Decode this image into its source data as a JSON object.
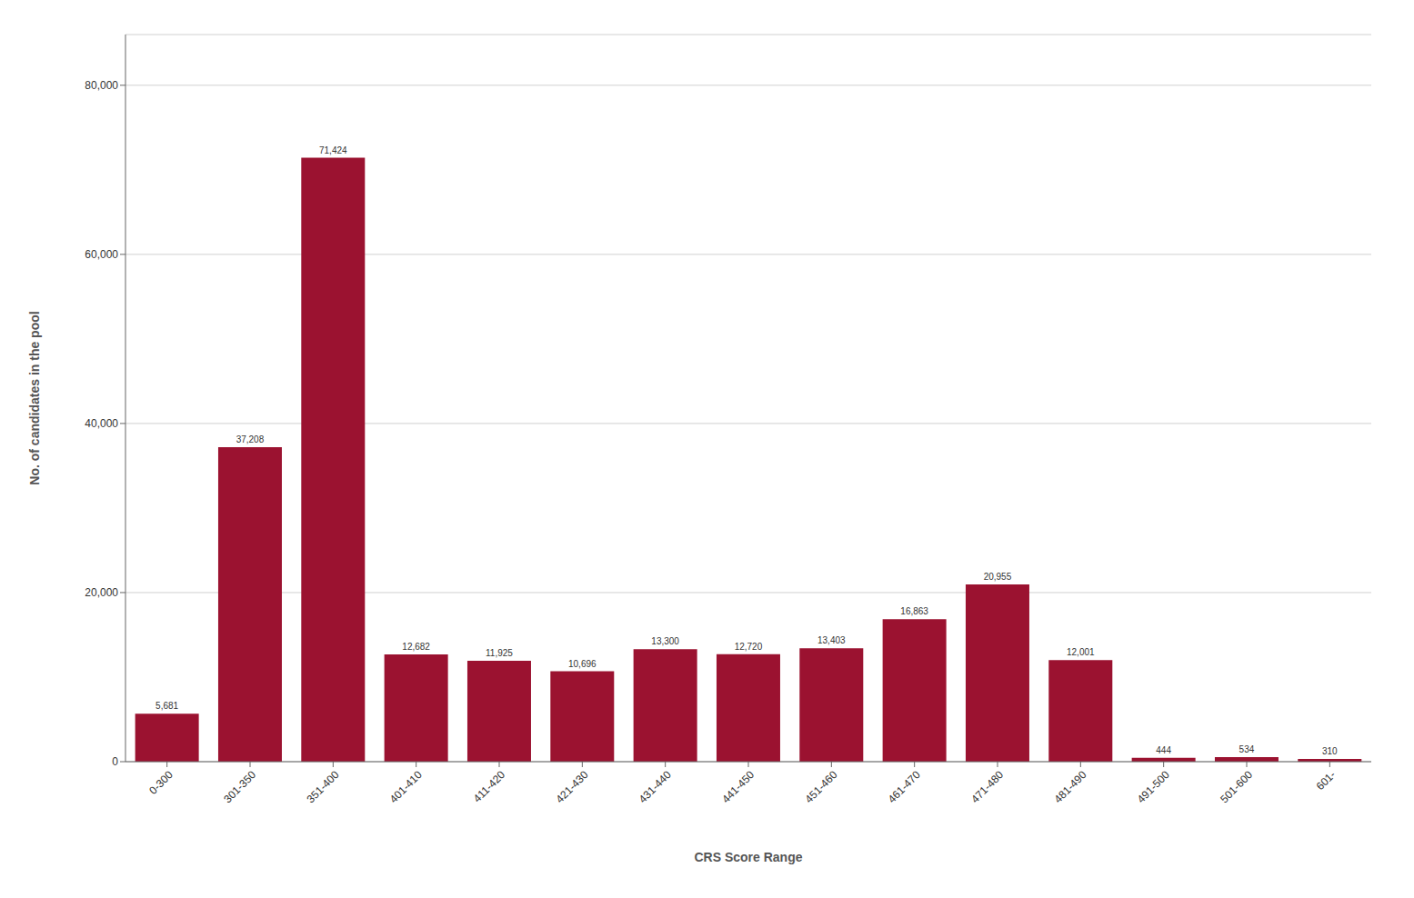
{
  "chart_data": {
    "type": "bar",
    "categories": [
      "0-300",
      "301-350",
      "351-400",
      "401-410",
      "411-420",
      "421-430",
      "431-440",
      "441-450",
      "451-460",
      "461-470",
      "471-480",
      "481-490",
      "491-500",
      "501-600",
      "601-"
    ],
    "values": [
      5681,
      37208,
      71424,
      12682,
      11925,
      10696,
      13300,
      12720,
      13403,
      16863,
      20955,
      12001,
      444,
      534,
      310
    ],
    "value_labels": [
      "5,681",
      "37,208",
      "71,424",
      "12,682",
      "11,925",
      "10,696",
      "13,300",
      "12,720",
      "13,403",
      "16,863",
      "20,955",
      "12,001",
      "444",
      "534",
      "310"
    ],
    "data_labels": true,
    "color": "#9B1230",
    "xlabel": "CRS Score Range",
    "ylabel": "No. of candidates in the pool",
    "ylim": [
      0,
      86000
    ],
    "yticks": [
      0,
      {
        "value": 20000,
        "label": "20,000"
      },
      {
        "value": 40000,
        "label": "40,000"
      },
      {
        "value": 60000,
        "label": "60,000"
      },
      {
        "value": 80000,
        "label": "80,000"
      }
    ],
    "grid": true
  }
}
